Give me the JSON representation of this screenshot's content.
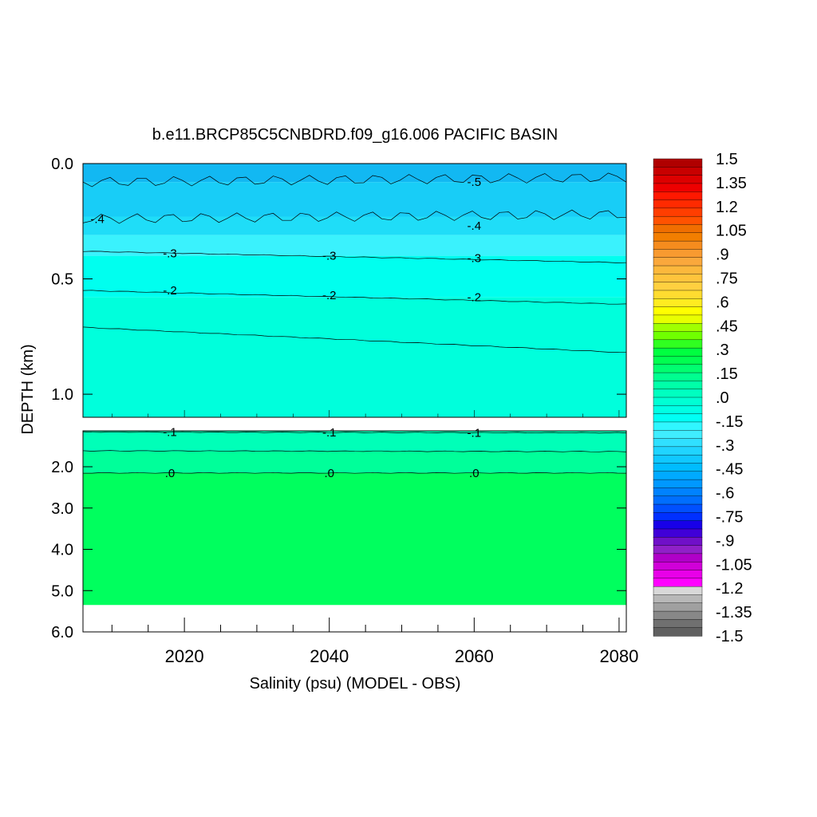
{
  "chart_data": {
    "type": "heatmap",
    "title": "b.e11.BRCP85C5CNBDRD.f09_g16.006 PACIFIC BASIN",
    "xlabel": "Salinity (psu) (MODEL - OBS)",
    "ylabel": "DEPTH (km)",
    "xlim": [
      2006,
      2081
    ],
    "x_ticks": [
      "2020",
      "2040",
      "2060",
      "2080"
    ],
    "upper_panel": {
      "ylim": [
        0.0,
        1.1
      ],
      "y_ticks": [
        {
          "value": 0.0,
          "label": "0.0"
        },
        {
          "value": 0.5,
          "label": "0.5"
        },
        {
          "value": 1.0,
          "label": "1.0"
        }
      ]
    },
    "lower_panel": {
      "ylim": [
        1.1,
        6.0
      ],
      "y_ticks": [
        {
          "value": 2.0,
          "label": "2.0"
        },
        {
          "value": 3.0,
          "label": "3.0"
        },
        {
          "value": 4.0,
          "label": "4.0"
        },
        {
          "value": 5.0,
          "label": "5.0"
        },
        {
          "value": 6.0,
          "label": "6.0"
        }
      ],
      "data_bottom_depth": 5.35
    },
    "contours": [
      {
        "level": -0.5,
        "label": "-.5",
        "depth_start": 0.08,
        "depth_end": 0.06,
        "label_positions": [
          [
            2060,
            0.08
          ]
        ]
      },
      {
        "level": -0.4,
        "label": "-.4",
        "depth_start": 0.24,
        "depth_end": 0.22,
        "label_positions": [
          [
            2008,
            0.24
          ],
          [
            2060,
            0.27
          ]
        ]
      },
      {
        "level": -0.3,
        "label": "-.3",
        "depth_start": 0.38,
        "depth_end": 0.43,
        "label_positions": [
          [
            2018,
            0.39
          ],
          [
            2040,
            0.4
          ],
          [
            2060,
            0.41
          ]
        ]
      },
      {
        "level": -0.2,
        "label": "-.2",
        "depth_start": 0.55,
        "depth_end": 0.61,
        "label_positions": [
          [
            2018,
            0.55
          ],
          [
            2040,
            0.57
          ],
          [
            2060,
            0.58
          ]
        ]
      },
      {
        "level": -0.1,
        "label": "-.1",
        "depth_start": 0.71,
        "depth_end": 0.82,
        "label_positions": []
      },
      {
        "level": -0.1,
        "label": "-.1",
        "depth_start": 1.13,
        "depth_end": 1.15,
        "label_positions": [
          [
            2018,
            1.13
          ],
          [
            2040,
            1.14
          ],
          [
            2060,
            1.15
          ]
        ]
      },
      {
        "level": -0.05,
        "label": "",
        "depth_start": 1.6,
        "depth_end": 1.62,
        "label_positions": []
      },
      {
        "level": 0.0,
        "label": ".0",
        "depth_start": 2.15,
        "depth_end": 2.15,
        "label_positions": [
          [
            2018,
            2.15
          ],
          [
            2040,
            2.15
          ],
          [
            2060,
            2.15
          ]
        ]
      }
    ],
    "bands": [
      {
        "from_depth": 0.0,
        "to_depth": 0.08,
        "color": "#12B8F2"
      },
      {
        "from_depth": 0.08,
        "to_depth": 0.23,
        "color": "#18CDF7"
      },
      {
        "from_depth": 0.23,
        "to_depth": 0.31,
        "color": "#1FDDF8"
      },
      {
        "from_depth": 0.31,
        "to_depth": 0.4,
        "color": "#3AF2FD"
      },
      {
        "from_depth": 0.4,
        "to_depth": 0.58,
        "color": "#00FFEF"
      },
      {
        "from_depth": 0.58,
        "to_depth": 1.1,
        "color": "#00FFDC"
      },
      {
        "from_depth": 1.1,
        "to_depth": 1.62,
        "color": "#00FFB8"
      },
      {
        "from_depth": 1.62,
        "to_depth": 2.15,
        "color": "#00FF9A"
      },
      {
        "from_depth": 2.15,
        "to_depth": 5.35,
        "color": "#00FF5E"
      }
    ],
    "colorbar": {
      "labels": [
        "1.5",
        "1.35",
        "1.2",
        "1.05",
        ".9",
        ".75",
        ".6",
        ".45",
        ".3",
        ".15",
        ".0",
        "-.15",
        "-.3",
        "-.45",
        "-.6",
        "-.75",
        "-.9",
        "-1.05",
        "-1.2",
        "-1.35",
        "-1.5"
      ],
      "colors": [
        "#B00000",
        "#C80000",
        "#DD0000",
        "#EE0000",
        "#FF1800",
        "#FF2A00",
        "#FF3E00",
        "#FF5200",
        "#F06E00",
        "#F27E00",
        "#F58C1E",
        "#F89A30",
        "#FAA83C",
        "#FCB83C",
        "#FFC43C",
        "#FFD040",
        "#FFDC30",
        "#FFEC20",
        "#FFFF00",
        "#E8FF00",
        "#A0FF00",
        "#70FF00",
        "#30FF20",
        "#00FF40",
        "#00FF50",
        "#00FF70",
        "#00FF90",
        "#00FFA8",
        "#00FFC0",
        "#00FFD4",
        "#00FFE4",
        "#00FFF4",
        "#30F6FF",
        "#40EDFF",
        "#30E0FF",
        "#20D4FF",
        "#10C8FF",
        "#00BCFF",
        "#00AAFF",
        "#0098FF",
        "#0082FF",
        "#006EFF",
        "#0050FF",
        "#0030FF",
        "#1800E8",
        "#4000D8",
        "#7010C8",
        "#9020C8",
        "#B000C8",
        "#D000D8",
        "#E800E8",
        "#FF00FF",
        "#D8D8D8",
        "#B8B8B8",
        "#A0A0A0",
        "#888888",
        "#707070",
        "#606060"
      ]
    }
  }
}
